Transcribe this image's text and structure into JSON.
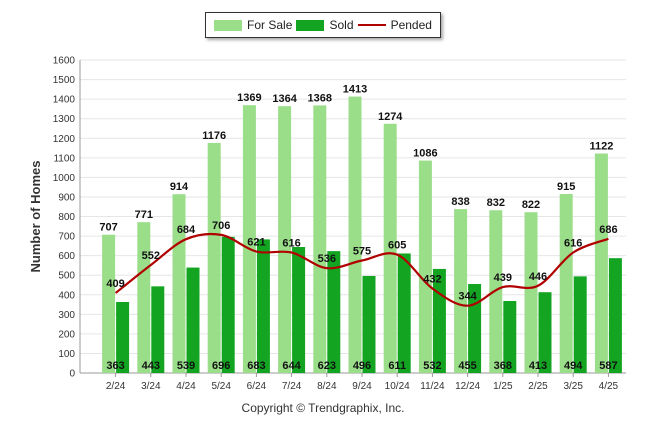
{
  "chart_data": {
    "type": "bar",
    "title": "",
    "xlabel": "",
    "ylabel": "Number of Homes",
    "ylim": [
      0,
      1600
    ],
    "ytick_step": 100,
    "grid": true,
    "legend_position": "top-center",
    "categories": [
      "2/24",
      "3/24",
      "4/24",
      "5/24",
      "6/24",
      "7/24",
      "8/24",
      "9/24",
      "10/24",
      "11/24",
      "12/24",
      "1/25",
      "2/25",
      "3/25",
      "4/25"
    ],
    "series": [
      {
        "name": "For Sale",
        "kind": "bar",
        "color": "#9bde8a",
        "values": [
          707,
          771,
          914,
          1176,
          1369,
          1364,
          1368,
          1413,
          1274,
          1086,
          838,
          832,
          822,
          915,
          1122
        ]
      },
      {
        "name": "Sold",
        "kind": "bar",
        "color": "#13a521",
        "values": [
          363,
          443,
          539,
          696,
          683,
          644,
          623,
          496,
          611,
          532,
          455,
          368,
          413,
          494,
          587
        ]
      },
      {
        "name": "Pended",
        "kind": "line",
        "color": "#b00000",
        "values": [
          409,
          552,
          684,
          706,
          621,
          616,
          536,
          575,
          605,
          432,
          344,
          439,
          446,
          616,
          686
        ]
      }
    ]
  },
  "credit": "Copyright © Trendgraphix, Inc."
}
